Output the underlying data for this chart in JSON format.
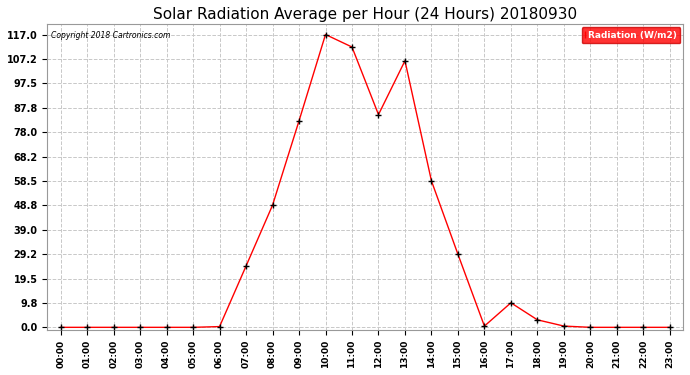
{
  "title": "Solar Radiation Average per Hour (24 Hours) 20180930",
  "copyright_text": "Copyright 2018 Cartronics.com",
  "legend_label": "Radiation (W/m2)",
  "hours": [
    0,
    1,
    2,
    3,
    4,
    5,
    6,
    7,
    8,
    9,
    10,
    11,
    12,
    13,
    14,
    15,
    16,
    17,
    18,
    19,
    20,
    21,
    22,
    23
  ],
  "values": [
    0.0,
    0.0,
    0.0,
    0.0,
    0.0,
    0.0,
    0.3,
    24.5,
    48.8,
    82.5,
    117.0,
    112.0,
    85.0,
    106.5,
    58.5,
    29.2,
    0.5,
    9.8,
    3.0,
    0.5,
    0.0,
    0.0,
    0.0,
    0.0
  ],
  "yticks": [
    0.0,
    9.8,
    19.5,
    29.2,
    39.0,
    48.8,
    58.5,
    68.2,
    78.0,
    87.8,
    97.5,
    107.2,
    117.0
  ],
  "line_color": "#FF0000",
  "marker_color": "#000000",
  "background_color": "#FFFFFF",
  "grid_color": "#C8C8C8",
  "title_fontsize": 11,
  "legend_bg": "#FF0000",
  "legend_text_color": "#FFFFFF",
  "fig_width": 6.9,
  "fig_height": 3.75,
  "dpi": 100
}
